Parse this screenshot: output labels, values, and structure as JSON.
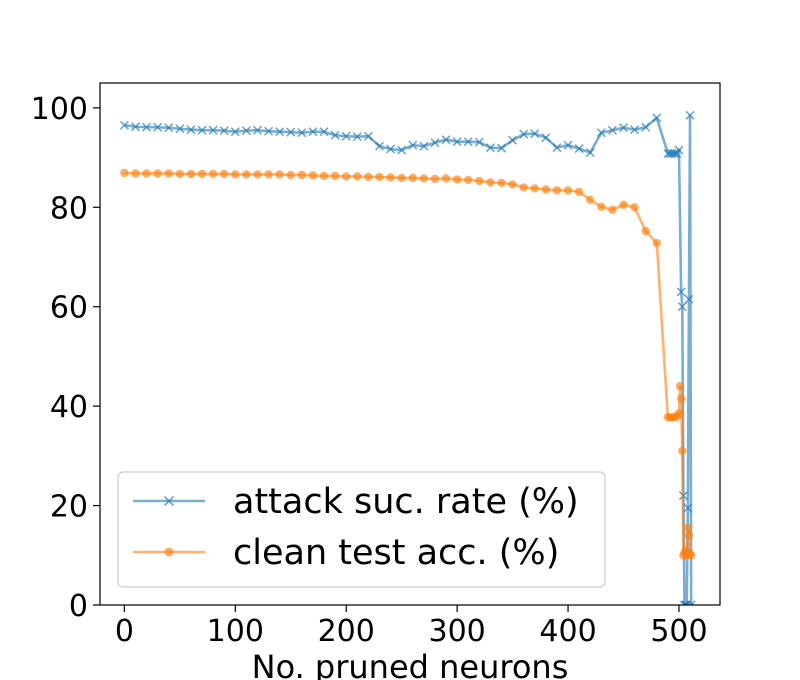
{
  "chart_data": {
    "type": "line",
    "title": "",
    "xlabel": "No. pruned neurons",
    "ylabel": "",
    "xlim": [
      -22,
      537
    ],
    "ylim": [
      0,
      105
    ],
    "xticks": [
      0,
      100,
      200,
      300,
      400,
      500
    ],
    "yticks": [
      0,
      20,
      40,
      60,
      80,
      100
    ],
    "grid": false,
    "legend_position": "lower-left",
    "series": [
      {
        "name": "attack suc. rate (%)",
        "color": "#1f77b4",
        "marker": "x",
        "x": [
          0,
          10,
          20,
          30,
          40,
          50,
          60,
          70,
          80,
          90,
          100,
          110,
          120,
          130,
          140,
          150,
          160,
          170,
          180,
          190,
          200,
          210,
          220,
          230,
          240,
          250,
          260,
          270,
          280,
          290,
          300,
          310,
          320,
          330,
          340,
          350,
          360,
          370,
          380,
          390,
          400,
          410,
          420,
          430,
          440,
          450,
          460,
          470,
          480,
          490,
          492,
          494,
          496,
          498,
          500,
          502,
          503,
          504,
          505,
          506,
          507,
          508,
          509,
          510,
          511
        ],
        "y": [
          96.5,
          96.2,
          96.1,
          96.1,
          96.0,
          95.8,
          95.6,
          95.5,
          95.5,
          95.4,
          95.2,
          95.4,
          95.5,
          95.3,
          95.2,
          95.1,
          95.0,
          95.2,
          95.2,
          94.5,
          94.3,
          94.2,
          94.3,
          92.3,
          91.7,
          91.5,
          92.5,
          92.3,
          93.0,
          93.6,
          93.2,
          93.2,
          93.1,
          92.0,
          91.9,
          93.5,
          94.7,
          94.8,
          94.0,
          92.0,
          92.5,
          91.8,
          91.0,
          95.0,
          95.5,
          96.0,
          95.6,
          96.1,
          98.0,
          90.8,
          90.8,
          90.8,
          90.8,
          90.8,
          91.5,
          63.0,
          60.0,
          22.0,
          0.0,
          0.0,
          0.0,
          19.5,
          61.5,
          98.5,
          0.0
        ]
      },
      {
        "name": "clean test acc. (%)",
        "color": "#ff7f0e",
        "marker": "o",
        "x": [
          0,
          10,
          20,
          30,
          40,
          50,
          60,
          70,
          80,
          90,
          100,
          110,
          120,
          130,
          140,
          150,
          160,
          170,
          180,
          190,
          200,
          210,
          220,
          230,
          240,
          250,
          260,
          270,
          280,
          290,
          300,
          310,
          320,
          330,
          340,
          350,
          360,
          370,
          380,
          390,
          400,
          410,
          420,
          430,
          440,
          450,
          460,
          470,
          480,
          490,
          492,
          494,
          496,
          498,
          500,
          501,
          502,
          503,
          504,
          505,
          506,
          507,
          508,
          509,
          510,
          511
        ],
        "y": [
          86.9,
          86.8,
          86.8,
          86.8,
          86.8,
          86.7,
          86.7,
          86.7,
          86.7,
          86.7,
          86.6,
          86.6,
          86.6,
          86.6,
          86.6,
          86.5,
          86.5,
          86.4,
          86.3,
          86.3,
          86.2,
          86.2,
          86.1,
          86.1,
          86.0,
          85.9,
          85.9,
          85.8,
          85.7,
          85.8,
          85.6,
          85.5,
          85.3,
          85.0,
          84.9,
          84.6,
          84.0,
          83.8,
          83.6,
          83.4,
          83.4,
          83.1,
          81.5,
          80.1,
          79.5,
          80.5,
          80.0,
          75.2,
          72.8,
          37.8,
          37.7,
          37.7,
          37.8,
          37.9,
          38.5,
          44.0,
          41.5,
          31.0,
          10.0,
          10.5,
          11.0,
          10.0,
          15.5,
          14.0,
          10.3,
          10.0
        ]
      }
    ]
  }
}
